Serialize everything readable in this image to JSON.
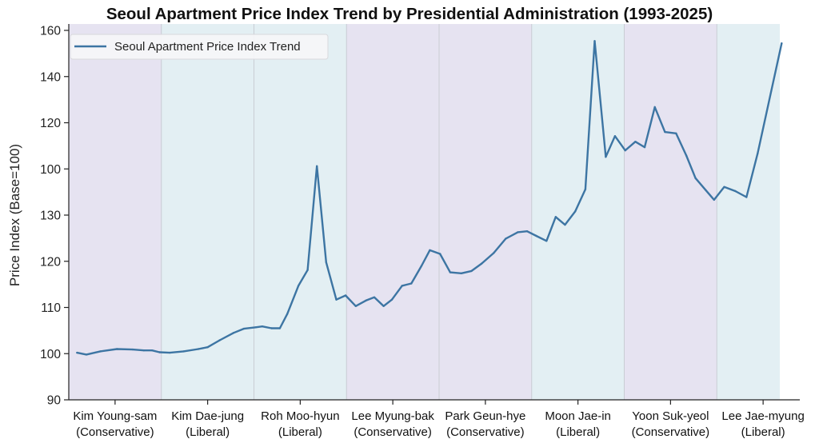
{
  "chart_data": {
    "type": "line",
    "title": "Seoul Apartment Price Index Trend by Presidential Administration (1993-2025)",
    "xlabel": "",
    "ylabel": "Price Index (Base=100)",
    "y_tick_labels": [
      "160",
      "140",
      "120",
      "100",
      "130",
      "120",
      "110",
      "100",
      "90"
    ],
    "ylim": [
      90,
      170
    ],
    "grid": false,
    "legend": {
      "position": "top-left",
      "entries": [
        "Seoul Apartment Price Index Trend"
      ]
    },
    "colors": {
      "line": "#3d75a3",
      "band_conservative": "#e6e3f1",
      "band_liberal": "#e3eff3",
      "band_divider": "#c9cdd4",
      "axis": "#222222"
    },
    "administrations": [
      {
        "name": "Kim Young-sam",
        "party": "(Conservative)",
        "band": "conservative"
      },
      {
        "name": "Kim Dae-jung",
        "party": "(Liberal)",
        "band": "liberal"
      },
      {
        "name": "Roh Moo-hyun",
        "party": "(Liberal)",
        "band": "liberal"
      },
      {
        "name": "Lee Myung-bak",
        "party": "(Conservative)",
        "band": "conservative"
      },
      {
        "name": "Park Geun-hye",
        "party": "(Conservative)",
        "band": "conservative"
      },
      {
        "name": "Moon Jae-in",
        "party": "(Liberal)",
        "band": "liberal"
      },
      {
        "name": "Yoon Suk-yeol",
        "party": "(Conservative)",
        "band": "conservative"
      },
      {
        "name": "Lee Jae-myung",
        "party": "(Liberal)",
        "band": "liberal"
      }
    ],
    "x_range_admin_units": [
      -0.1,
      8.0
    ],
    "series": [
      {
        "name": "Seoul Apartment Price Index Trend",
        "x_admin_units": [
          0.09,
          0.19,
          0.34,
          0.52,
          0.69,
          0.81,
          0.9,
          0.98,
          1.09,
          1.24,
          1.4,
          1.5,
          1.63,
          1.78,
          1.89,
          2.02,
          2.09,
          2.19,
          2.28,
          2.36,
          2.48,
          2.58,
          2.68,
          2.78,
          2.89,
          2.99,
          3.1,
          3.21,
          3.3,
          3.4,
          3.49,
          3.6,
          3.7,
          3.81,
          3.9,
          4.01,
          4.12,
          4.24,
          4.35,
          4.46,
          4.59,
          4.72,
          4.85,
          4.95,
          5.05,
          5.16,
          5.26,
          5.36,
          5.47,
          5.58,
          5.68,
          5.8,
          5.9,
          6.01,
          6.12,
          6.22,
          6.33,
          6.44,
          6.56,
          6.67,
          6.77,
          6.88,
          6.97,
          7.08,
          7.2,
          7.32,
          7.44,
          7.7
        ],
        "values": [
          100.2,
          99.8,
          100.5,
          101.0,
          100.9,
          100.7,
          100.7,
          100.3,
          100.2,
          100.5,
          101.0,
          101.4,
          102.9,
          104.5,
          105.4,
          105.7,
          105.9,
          105.5,
          105.5,
          108.6,
          114.7,
          118.1,
          140.6,
          119.8,
          111.7,
          112.6,
          110.3,
          111.5,
          112.2,
          110.3,
          111.7,
          114.7,
          115.2,
          119.0,
          122.4,
          121.6,
          117.6,
          117.4,
          117.9,
          119.5,
          121.8,
          124.9,
          126.3,
          126.5,
          125.5,
          124.4,
          129.6,
          127.9,
          130.8,
          135.6,
          167.7,
          142.6,
          147.1,
          144.0,
          145.9,
          144.7,
          153.4,
          148.0,
          147.7,
          142.9,
          138.0,
          135.4,
          133.3,
          136.1,
          135.2,
          133.9,
          143.3,
          167.2
        ]
      }
    ]
  }
}
